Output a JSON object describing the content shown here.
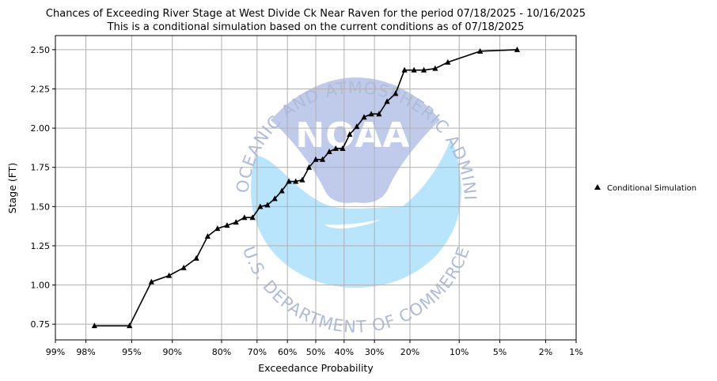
{
  "chart_data": {
    "type": "line",
    "title": "Chances of Exceeding River Stage at West Divide Ck Near Raven for the period 07/18/2025 - 10/16/2025",
    "subtitle": "This is a conditional simulation based on the current conditions as of 07/18/2025",
    "xlabel": "Exceedance Probability",
    "ylabel": "Stage (FT)",
    "x_scale": "normal-probability",
    "x_ticks": [
      {
        "value": 0.99,
        "label": "99%"
      },
      {
        "value": 0.98,
        "label": "98%"
      },
      {
        "value": 0.95,
        "label": "95%"
      },
      {
        "value": 0.9,
        "label": "90%"
      },
      {
        "value": 0.8,
        "label": "80%"
      },
      {
        "value": 0.7,
        "label": "70%"
      },
      {
        "value": 0.6,
        "label": "60%"
      },
      {
        "value": 0.5,
        "label": "50%"
      },
      {
        "value": 0.4,
        "label": "40%"
      },
      {
        "value": 0.3,
        "label": "30%"
      },
      {
        "value": 0.2,
        "label": "20%"
      },
      {
        "value": 0.1,
        "label": "10%"
      },
      {
        "value": 0.05,
        "label": "5%"
      },
      {
        "value": 0.02,
        "label": "2%"
      },
      {
        "value": 0.01,
        "label": "1%"
      }
    ],
    "y_ticks": [
      {
        "value": 0.75,
        "label": "0.75"
      },
      {
        "value": 1.0,
        "label": "1.00"
      },
      {
        "value": 1.25,
        "label": "1.25"
      },
      {
        "value": 1.5,
        "label": "1.50"
      },
      {
        "value": 1.75,
        "label": "1.75"
      },
      {
        "value": 2.0,
        "label": "2.00"
      },
      {
        "value": 2.25,
        "label": "2.25"
      },
      {
        "value": 2.5,
        "label": "2.50"
      }
    ],
    "ylim": [
      0.65,
      2.59
    ],
    "xlim": [
      0.99,
      0.01
    ],
    "grid": true,
    "legend_position": "right",
    "series": [
      {
        "name": "Conditional Simulation",
        "color": "#000000",
        "marker": "triangle",
        "points": [
          {
            "x": 0.976,
            "y": 0.74
          },
          {
            "x": 0.952,
            "y": 0.74
          },
          {
            "x": 0.929,
            "y": 1.02
          },
          {
            "x": 0.905,
            "y": 1.06
          },
          {
            "x": 0.881,
            "y": 1.11
          },
          {
            "x": 0.857,
            "y": 1.17
          },
          {
            "x": 0.833,
            "y": 1.31
          },
          {
            "x": 0.81,
            "y": 1.36
          },
          {
            "x": 0.786,
            "y": 1.38
          },
          {
            "x": 0.762,
            "y": 1.4
          },
          {
            "x": 0.738,
            "y": 1.43
          },
          {
            "x": 0.714,
            "y": 1.43
          },
          {
            "x": 0.69,
            "y": 1.5
          },
          {
            "x": 0.667,
            "y": 1.51
          },
          {
            "x": 0.643,
            "y": 1.55
          },
          {
            "x": 0.619,
            "y": 1.6
          },
          {
            "x": 0.595,
            "y": 1.66
          },
          {
            "x": 0.571,
            "y": 1.66
          },
          {
            "x": 0.548,
            "y": 1.67
          },
          {
            "x": 0.524,
            "y": 1.75
          },
          {
            "x": 0.5,
            "y": 1.8
          },
          {
            "x": 0.476,
            "y": 1.8
          },
          {
            "x": 0.452,
            "y": 1.85
          },
          {
            "x": 0.429,
            "y": 1.87
          },
          {
            "x": 0.405,
            "y": 1.87
          },
          {
            "x": 0.381,
            "y": 1.96
          },
          {
            "x": 0.357,
            "y": 2.01
          },
          {
            "x": 0.333,
            "y": 2.07
          },
          {
            "x": 0.31,
            "y": 2.09
          },
          {
            "x": 0.286,
            "y": 2.09
          },
          {
            "x": 0.262,
            "y": 2.17
          },
          {
            "x": 0.238,
            "y": 2.22
          },
          {
            "x": 0.214,
            "y": 2.37
          },
          {
            "x": 0.19,
            "y": 2.37
          },
          {
            "x": 0.167,
            "y": 2.37
          },
          {
            "x": 0.143,
            "y": 2.38
          },
          {
            "x": 0.119,
            "y": 2.42
          },
          {
            "x": 0.071,
            "y": 2.49
          },
          {
            "x": 0.036,
            "y": 2.5
          }
        ]
      }
    ]
  },
  "watermark": {
    "agency_text": "NATIONAL OCEANIC AND ATMOSPHERIC ADMINISTRATION",
    "department_text": "U.S. DEPARTMENT OF COMMERCE",
    "logo_text": "NOAA",
    "colors": {
      "upper": "#c0cbec",
      "lower": "#b8e4fc",
      "text": "#aebbd9"
    }
  }
}
